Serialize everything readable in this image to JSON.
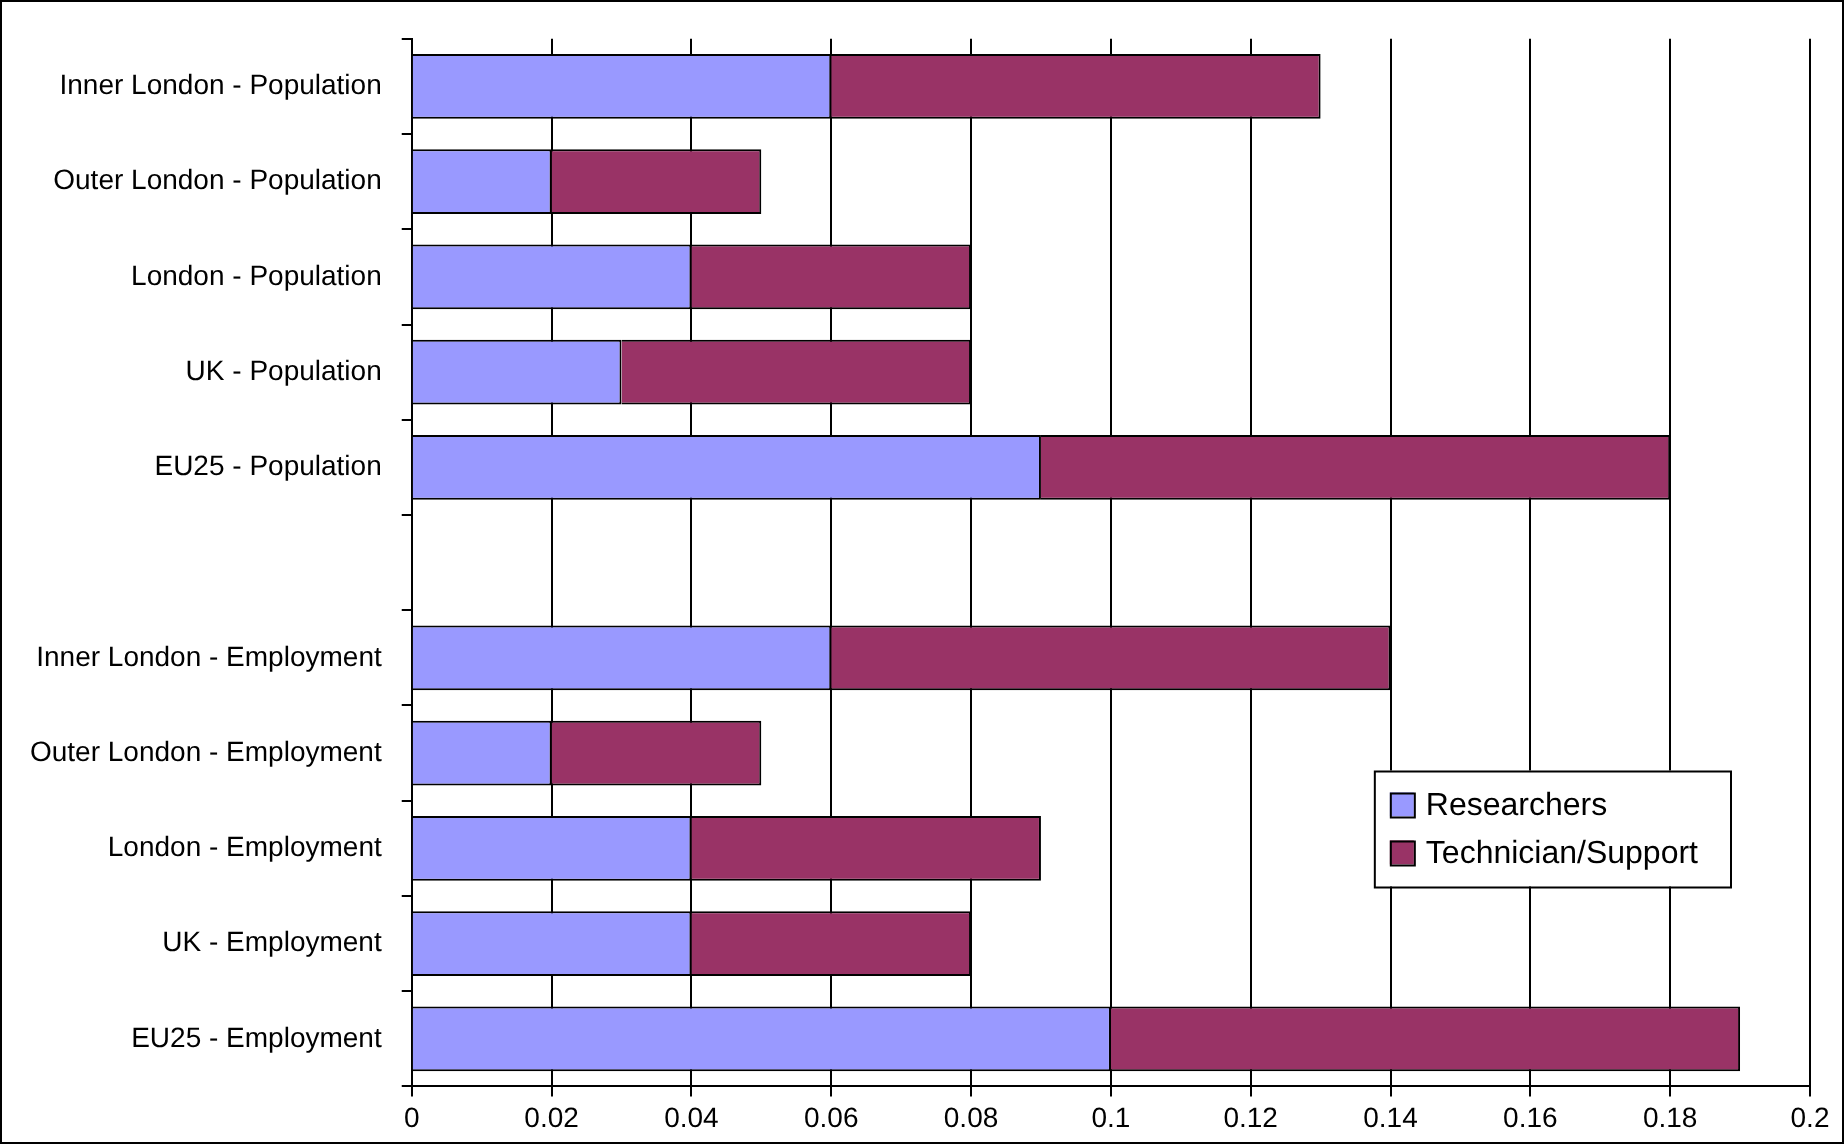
{
  "chart_data": {
    "type": "bar",
    "orientation": "horizontal",
    "stacked": true,
    "categories": [
      "Inner London - Population",
      "Outer London - Population",
      "London - Population",
      "UK - Population",
      "EU25 - Population",
      null,
      "Inner London - Employment",
      "Outer London - Employment",
      "London - Employment",
      "UK - Employment",
      "EU25 - Employment"
    ],
    "series": [
      {
        "name": "Researchers",
        "color": "#9999ff",
        "values": [
          0.06,
          0.02,
          0.04,
          0.03,
          0.09,
          null,
          0.06,
          0.02,
          0.04,
          0.04,
          0.1
        ]
      },
      {
        "name": "Technician/Support",
        "color": "#993366",
        "values": [
          0.07,
          0.03,
          0.04,
          0.05,
          0.09,
          null,
          0.08,
          0.03,
          0.05,
          0.04,
          0.09
        ]
      }
    ],
    "xlim": [
      0,
      0.2
    ],
    "xticks": [
      0,
      0.02,
      0.04,
      0.06,
      0.08,
      0.1,
      0.12,
      0.14,
      0.16,
      0.18,
      0.2
    ],
    "grid": "x",
    "legend": "bottom right"
  }
}
